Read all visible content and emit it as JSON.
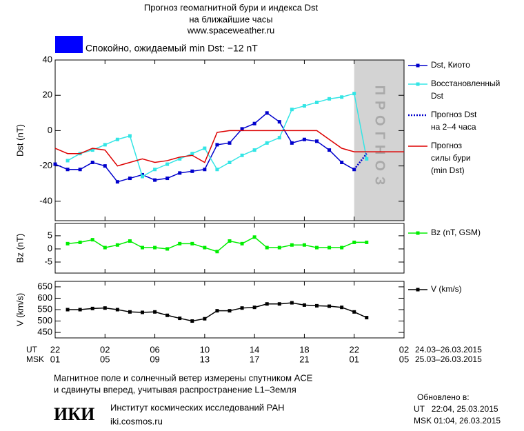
{
  "header": {
    "title_lines": [
      "Прогноз геомагнитной бури и индекса Dst",
      "на ближайшие часы",
      "www.spaceweather.ru"
    ]
  },
  "status": {
    "text": "Спокойно, ожидаемый min Dst: −12 nT",
    "color": "#0000ff"
  },
  "chart_data": [
    {
      "type": "line",
      "ylabel": "Dst (nT)",
      "xlim": [
        0,
        28
      ],
      "ylim": [
        -51,
        40
      ],
      "yticks": [
        40,
        20,
        0,
        -20,
        -40
      ],
      "forecast_band": [
        24,
        28
      ],
      "forecast_label": "ПРОГНОЗ",
      "series": [
        {
          "name": [
            "Dst, Киото"
          ],
          "color": "#0000cc",
          "markers": true,
          "dash": "solid",
          "x": [
            0,
            1,
            2,
            3,
            4,
            5,
            6,
            7,
            8,
            9,
            10,
            11,
            12,
            13,
            14,
            15,
            16,
            17,
            18,
            19,
            20,
            21,
            22,
            23,
            24
          ],
          "values": [
            -19,
            -22,
            -22,
            -18,
            -20,
            -29,
            -27,
            -25,
            -28,
            -27,
            -24,
            -23,
            -22,
            -8,
            -7,
            1,
            4,
            10,
            5,
            -7,
            -5,
            -6,
            -11,
            -18,
            -22
          ]
        },
        {
          "name": [
            "Восстановленный",
            "Dst"
          ],
          "color": "#33e5e5",
          "markers": true,
          "dash": "solid",
          "x": [
            1,
            2,
            3,
            4,
            5,
            6,
            7,
            8,
            9,
            10,
            11,
            12,
            13,
            14,
            15,
            16,
            17,
            18,
            19,
            20,
            21,
            22,
            23,
            24,
            25
          ],
          "values": [
            -17,
            -13,
            -11,
            -8,
            -5,
            -3,
            -26,
            -22,
            -19,
            -16,
            -13,
            -10,
            -22,
            -18,
            -14,
            -11,
            -7,
            -4,
            12,
            14,
            16,
            18,
            19,
            21,
            -16
          ]
        },
        {
          "name": [
            "Прогноз Dst",
            "на 2–4 часа"
          ],
          "color": "#0000cc",
          "markers": false,
          "dash": "dotted",
          "x": [
            24,
            25
          ],
          "values": [
            -22,
            -13
          ]
        },
        {
          "name": [
            "Прогноз",
            "силы бури",
            "(min Dst)"
          ],
          "color": "#dd0000",
          "markers": false,
          "dash": "solid",
          "x": [
            0,
            1,
            2,
            3,
            4,
            5,
            6,
            7,
            8,
            9,
            10,
            11,
            12,
            13,
            14,
            15,
            16,
            17,
            18,
            19,
            20,
            21,
            22,
            23,
            24,
            25,
            28
          ],
          "values": [
            -10,
            -13,
            -13,
            -10,
            -11,
            -20,
            -18,
            -16,
            -18,
            -17,
            -15,
            -14,
            -18,
            -1,
            0,
            0,
            0,
            0,
            0,
            0,
            0,
            0,
            -5,
            -10,
            -12,
            -12,
            -12
          ]
        }
      ]
    },
    {
      "type": "line",
      "ylabel": "Bz (nT)",
      "xlim": [
        0,
        28
      ],
      "ylim": [
        -9.2,
        9.7
      ],
      "yticks": [
        5,
        0,
        -5
      ],
      "series": [
        {
          "name": [
            "Bz (nT, GSM)"
          ],
          "color": "#00ee00",
          "markers": true,
          "dash": "solid",
          "x": [
            1,
            2,
            3,
            4,
            5,
            6,
            7,
            8,
            9,
            10,
            11,
            12,
            13,
            14,
            15,
            16,
            17,
            18,
            19,
            20,
            21,
            22,
            23,
            24,
            25
          ],
          "values": [
            2,
            2.5,
            3.5,
            0.5,
            1.5,
            3,
            0.5,
            0.5,
            0,
            2,
            2,
            0.5,
            -1,
            3,
            2,
            4.5,
            0.5,
            0.5,
            1.5,
            1.5,
            0.5,
            0.5,
            0.5,
            2.5,
            2.5
          ]
        }
      ]
    },
    {
      "type": "line",
      "ylabel": "V (km/s)",
      "xlim": [
        0,
        28
      ],
      "ylim": [
        426,
        674
      ],
      "yticks": [
        650,
        600,
        550,
        500,
        450
      ],
      "xticks": [
        {
          "value": 0,
          "label": "22"
        },
        {
          "value": 4,
          "label": "02"
        },
        {
          "value": 8,
          "label": "06"
        },
        {
          "value": 12,
          "label": "10"
        },
        {
          "value": 16,
          "label": "14"
        },
        {
          "value": 20,
          "label": "18"
        },
        {
          "value": 24,
          "label": "22"
        },
        {
          "value": 28,
          "label": "02"
        }
      ],
      "msk_ticks": [
        {
          "value": 0,
          "label": "01"
        },
        {
          "value": 4,
          "label": "05"
        },
        {
          "value": 8,
          "label": "09"
        },
        {
          "value": 12,
          "label": "13"
        },
        {
          "value": 16,
          "label": "17"
        },
        {
          "value": 20,
          "label": "21"
        },
        {
          "value": 24,
          "label": "01"
        },
        {
          "value": 28,
          "label": "05"
        }
      ],
      "ut_label": "UT",
      "msk_label": "MSK",
      "ut_range": "24.03–26.03.2015",
      "msk_range": "25.03–26.03.2015",
      "series": [
        {
          "name": [
            "V (km/s)"
          ],
          "color": "#000000",
          "markers": true,
          "dash": "solid",
          "x": [
            1,
            2,
            3,
            4,
            5,
            6,
            7,
            8,
            9,
            10,
            11,
            12,
            13,
            14,
            15,
            16,
            17,
            18,
            19,
            20,
            21,
            22,
            23,
            24,
            25
          ],
          "values": [
            550,
            550,
            555,
            557,
            550,
            540,
            538,
            540,
            525,
            512,
            500,
            510,
            545,
            545,
            557,
            560,
            575,
            575,
            580,
            570,
            567,
            565,
            560,
            540,
            515
          ]
        }
      ]
    }
  ],
  "footer": {
    "note_lines": [
      "Магнитное поле и солнечный ветер измерены спутником ACE",
      "и сдвинуты вперед, учитывая распространение L1–Земля"
    ],
    "logo": "ИКИ",
    "institute": "Институт космических исследований РАН",
    "site": "iki.cosmos.ru",
    "updated_label": "Обновлено в:",
    "updated_ut": "UT   22:04, 25.03.2015",
    "updated_msk": "MSK 01:04, 26.03.2015"
  }
}
